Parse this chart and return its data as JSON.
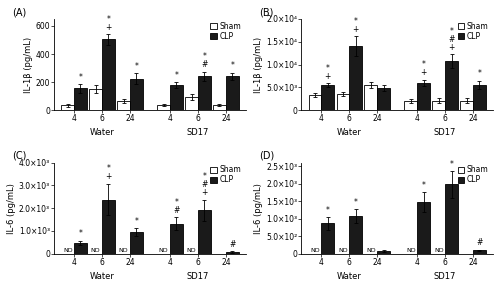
{
  "figsize": [
    5.0,
    2.9
  ],
  "dpi": 100,
  "panels": [
    {
      "label": "(A)",
      "ylabel": "IL-1β (pg/mL)",
      "ylim": [
        0,
        650
      ],
      "yticks": [
        0,
        200,
        400,
        600
      ],
      "ytick_labels": [
        "0",
        "200",
        "400",
        "600"
      ],
      "use_sci": false,
      "groups": [
        "4",
        "6",
        "24",
        "4",
        "6",
        "24"
      ],
      "sham_vals": [
        35,
        150,
        65,
        38,
        92,
        35
      ],
      "sham_errs": [
        12,
        28,
        15,
        8,
        20,
        8
      ],
      "clp_vals": [
        155,
        505,
        225,
        178,
        242,
        242
      ],
      "clp_errs": [
        32,
        38,
        38,
        20,
        32,
        25
      ],
      "clp_annots": [
        "*",
        "*\n+",
        "*",
        "*",
        "*\n#",
        "*"
      ],
      "sham_annots": [
        "",
        "",
        "",
        "",
        "",
        ""
      ],
      "nd_sham": [
        false,
        false,
        false,
        false,
        false,
        false
      ],
      "nd_clp": [
        false,
        false,
        false,
        false,
        false,
        false
      ]
    },
    {
      "label": "(B)",
      "ylabel": "IL-1β (pg/mL)",
      "ylim": [
        0,
        20000
      ],
      "yticks": [
        0,
        5000,
        10000,
        15000,
        20000
      ],
      "ytick_labels": [
        "0",
        "5.0×10³",
        "1.0×10⁴",
        "1.5×10⁴",
        "2.0×10⁴"
      ],
      "use_sci": true,
      "sci_label": "2.0×10⁴",
      "groups": [
        "4",
        "6",
        "24",
        "4",
        "6",
        "24"
      ],
      "sham_vals": [
        3300,
        3500,
        5500,
        2000,
        2100,
        2100
      ],
      "sham_errs": [
        400,
        500,
        700,
        400,
        500,
        500
      ],
      "clp_vals": [
        5500,
        14000,
        4800,
        6000,
        10800,
        5600
      ],
      "clp_errs": [
        500,
        2200,
        700,
        700,
        1500,
        900
      ],
      "clp_annots": [
        "*\n+",
        "*\n+",
        "",
        "*\n+",
        "*\n#\n+",
        "*"
      ],
      "sham_annots": [
        "",
        "",
        "",
        "",
        "",
        ""
      ],
      "nd_sham": [
        false,
        false,
        false,
        false,
        false,
        false
      ],
      "nd_clp": [
        false,
        false,
        false,
        false,
        false,
        false
      ]
    },
    {
      "label": "(C)",
      "ylabel": "IL-6 (pg/mL)",
      "ylim": [
        0,
        4000
      ],
      "yticks": [
        0,
        1000,
        2000,
        3000,
        4000
      ],
      "ytick_labels": [
        "0",
        "1.0×10³",
        "2.0×10³",
        "3.0×10³",
        "4.0×10³"
      ],
      "use_sci": true,
      "sci_label": "4.0×10³",
      "groups": [
        "4",
        "6",
        "24",
        "4",
        "6",
        "24"
      ],
      "sham_vals": [
        0,
        0,
        0,
        0,
        0,
        0
      ],
      "sham_errs": [
        0,
        0,
        0,
        0,
        0,
        0
      ],
      "clp_vals": [
        480,
        2380,
        950,
        1320,
        1900,
        75
      ],
      "clp_errs": [
        100,
        700,
        180,
        280,
        480,
        25
      ],
      "clp_annots": [
        "*",
        "*\n+",
        "*",
        "*\n#",
        "*\n#\n+",
        "#"
      ],
      "sham_annots": [
        "",
        "",
        "",
        "",
        "",
        ""
      ],
      "nd_sham": [
        true,
        true,
        true,
        true,
        true,
        false
      ],
      "nd_clp": [
        false,
        false,
        false,
        false,
        false,
        false
      ]
    },
    {
      "label": "(D)",
      "ylabel": "IL-6 (pg/mL)",
      "ylim": [
        0,
        2600
      ],
      "yticks": [
        0,
        500,
        1000,
        1500,
        2000,
        2500
      ],
      "ytick_labels": [
        "0",
        "5.0×10²",
        "1.0×10³",
        "1.5×10³",
        "2.0×10³",
        "2.5×10³"
      ],
      "use_sci": true,
      "sci_label": "2.5×10³",
      "groups": [
        "4",
        "6",
        "24",
        "4",
        "6",
        "24"
      ],
      "sham_vals": [
        0,
        0,
        0,
        0,
        0,
        0
      ],
      "sham_errs": [
        0,
        0,
        0,
        0,
        0,
        0
      ],
      "clp_vals": [
        870,
        1080,
        75,
        1480,
        1980,
        95
      ],
      "clp_errs": [
        180,
        200,
        25,
        280,
        380,
        25
      ],
      "clp_annots": [
        "*",
        "*",
        "",
        "*",
        "*",
        "#"
      ],
      "sham_annots": [
        "",
        "",
        "",
        "",
        "",
        ""
      ],
      "nd_sham": [
        true,
        true,
        true,
        true,
        true,
        false
      ],
      "nd_clp": [
        false,
        false,
        false,
        false,
        false,
        false
      ]
    }
  ],
  "sham_color": "#ffffff",
  "clp_color": "#1a1a1a",
  "bar_edge": "#000000",
  "bar_width": 0.32,
  "fontsize": 6,
  "annot_fontsize": 5.5,
  "legend_fontsize": 5.5
}
